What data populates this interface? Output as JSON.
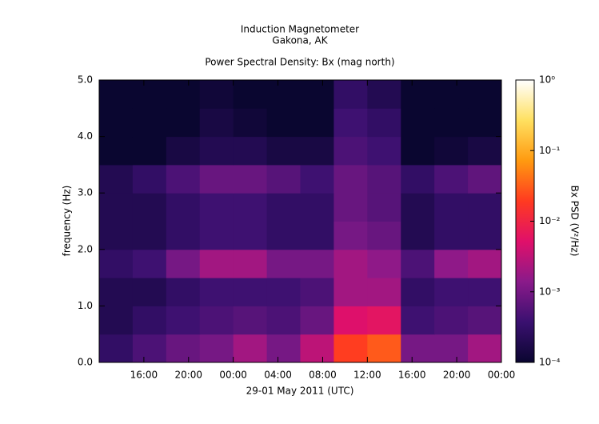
{
  "chart_data": {
    "type": "heatmap",
    "title": "Induction Magnetometer",
    "subtitle": "Gakona, AK",
    "plot_title": "Power Spectral Density: Bx (mag north)",
    "x_label": "29-01 May 2011 (UTC)",
    "y_label": "frequency (Hz)",
    "colorbar_label": "Bx PSD (V²/Hz)",
    "x_bins": [
      0,
      3,
      6,
      9,
      12,
      15,
      18,
      21,
      24,
      27,
      30,
      33,
      36
    ],
    "y_bins": [
      0,
      0.5,
      1,
      1.5,
      2,
      2.5,
      3,
      3.5,
      4,
      4.5,
      5
    ],
    "values": [
      [
        0.0003,
        0.0005,
        0.0008,
        0.001,
        0.002,
        0.001,
        0.003,
        0.02,
        0.03,
        0.001,
        0.001,
        0.002
      ],
      [
        0.0002,
        0.0003,
        0.0004,
        0.0005,
        0.0006,
        0.0005,
        0.0008,
        0.005,
        0.006,
        0.0004,
        0.0005,
        0.0006
      ],
      [
        0.0002,
        0.0002,
        0.0003,
        0.0004,
        0.0004,
        0.0004,
        0.0005,
        0.002,
        0.002,
        0.0003,
        0.0004,
        0.0004
      ],
      [
        0.0003,
        0.0004,
        0.001,
        0.002,
        0.002,
        0.001,
        0.001,
        0.002,
        0.0015,
        0.0005,
        0.0015,
        0.002
      ],
      [
        0.0002,
        0.0002,
        0.0003,
        0.0004,
        0.0004,
        0.0003,
        0.0003,
        0.001,
        0.0008,
        0.0002,
        0.0003,
        0.0003
      ],
      [
        0.0002,
        0.0002,
        0.0003,
        0.0004,
        0.0004,
        0.0003,
        0.0003,
        0.0008,
        0.0006,
        0.0002,
        0.0003,
        0.0003
      ],
      [
        0.0002,
        0.0003,
        0.0005,
        0.0008,
        0.0008,
        0.0006,
        0.0004,
        0.0008,
        0.0006,
        0.0003,
        0.0005,
        0.0007
      ],
      [
        0.0001,
        0.0001,
        0.00015,
        0.0002,
        0.0002,
        0.00015,
        0.00015,
        0.0005,
        0.0004,
        0.0001,
        0.00012,
        0.00015
      ],
      [
        0.0001,
        0.0001,
        0.0001,
        0.00015,
        0.00012,
        0.0001,
        0.0001,
        0.0004,
        0.0003,
        0.0001,
        0.0001,
        0.0001
      ],
      [
        0.0001,
        0.0001,
        0.0001,
        0.00012,
        0.0001,
        0.0001,
        0.0001,
        0.0003,
        0.0002,
        0.0001,
        0.0001,
        0.0001
      ]
    ],
    "xlim": [
      0,
      36
    ],
    "xticks": [
      {
        "value": 4,
        "label": "16:00"
      },
      {
        "value": 8,
        "label": "20:00"
      },
      {
        "value": 12,
        "label": "00:00"
      },
      {
        "value": 16,
        "label": "04:00"
      },
      {
        "value": 20,
        "label": "08:00"
      },
      {
        "value": 24,
        "label": "12:00"
      },
      {
        "value": 28,
        "label": "16:00"
      },
      {
        "value": 32,
        "label": "20:00"
      },
      {
        "value": 36,
        "label": "00:00"
      }
    ],
    "ylim": [
      0,
      5
    ],
    "yticks": [
      {
        "value": 0,
        "label": "0.0"
      },
      {
        "value": 1,
        "label": "1.0"
      },
      {
        "value": 2,
        "label": "2.0"
      },
      {
        "value": 3,
        "label": "3.0"
      },
      {
        "value": 4,
        "label": "4.0"
      },
      {
        "value": 5,
        "label": "5.0"
      }
    ],
    "clim": [
      0.0001,
      1
    ],
    "color_log_scale": true,
    "cticks": [
      {
        "value": 0.0001,
        "label": "10⁻⁴"
      },
      {
        "value": 0.001,
        "label": "10⁻³"
      },
      {
        "value": 0.01,
        "label": "10⁻²"
      },
      {
        "value": 0.1,
        "label": "10⁻¹"
      },
      {
        "value": 1,
        "label": "10⁰"
      }
    ],
    "colorscale": [
      "#0a0630",
      "#3a1070",
      "#8a1a8a",
      "#e0106a",
      "#ff3a20",
      "#ff9a10",
      "#ffe060",
      "#ffffff"
    ]
  }
}
